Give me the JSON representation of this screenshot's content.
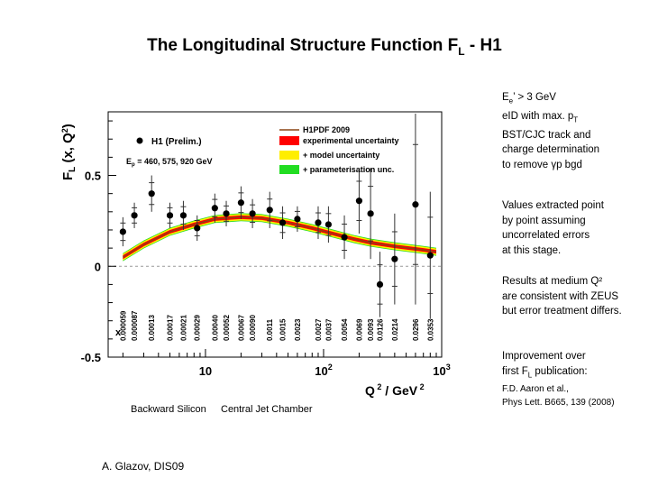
{
  "slide": {
    "title_main": "The Longitudinal Structure Function F",
    "title_sub": "L",
    "title_tail": " - H1"
  },
  "notes": {
    "cuts": {
      "line1_a": "E",
      "line1_sub": "e",
      "line1_b": "’ > 3 GeV",
      "line2_a": "eID with max. p",
      "line2_sub": "T",
      "line3": "BST/CJC track and",
      "line4": "charge determination",
      "line5": "to remove γp bgd"
    },
    "extraction": {
      "line1": "Values extracted point",
      "line2": "by point assuming",
      "line3": "uncorrelated errors",
      "line4": "at this stage."
    },
    "results": {
      "line1": "Results at medium Q²",
      "line2": "are consistent with ZEUS",
      "line3": "but error treatment differs."
    },
    "improvement": {
      "line1": "Improvement over",
      "line2_a": "first F",
      "line2_sub": "L",
      "line2_b": " publication:",
      "ref1": "F.D. Aaron et al.,",
      "ref2": "Phys Lett. B665, 139 (2008)"
    }
  },
  "footer": {
    "backward_label": "Backward Silicon",
    "central_label": "Central Jet Chamber",
    "author": "A. Glazov,  DIS09"
  },
  "chart_data": {
    "type": "scatter",
    "xscale": "log",
    "xlim": [
      1.5,
      1000
    ],
    "ylim": [
      -0.5,
      0.85
    ],
    "ylabel_main": "F",
    "ylabel_sub": "L",
    "ylabel_tail": " (x, Q",
    "ylabel_sup": "2",
    "ylabel_end": ")",
    "xlabel_main": "Q",
    "xlabel_sup1": " 2",
    "xlabel_mid": " / GeV",
    "xlabel_sup2": " 2",
    "x_ticks": [
      {
        "value": 10,
        "label": "10",
        "sup": ""
      },
      {
        "value": 100,
        "label": "10",
        "sup": "2"
      },
      {
        "value": 1000,
        "label": "10",
        "sup": "3"
      }
    ],
    "y_ticks": [
      {
        "value": 0.5,
        "label": "0.5"
      },
      {
        "value": 0,
        "label": "0"
      },
      {
        "value": -0.5,
        "label": "-0.5"
      }
    ],
    "x_row_label": "x",
    "x_values": [
      "0.000059",
      "0.000087",
      "0.00013",
      "0.00017",
      "0.00021",
      "0.00029",
      "0.00040",
      "0.00052",
      "0.00067",
      "0.00090",
      "0.0011",
      "0.0015",
      "0.0023",
      "0.0027",
      "0.0037",
      "0.0054",
      "0.0069",
      "0.0093",
      "0.0126",
      "0.0214",
      "0.0296",
      "0.0353"
    ],
    "legend": {
      "h1_label": "H1 (Prelim.)",
      "ep_label": "E",
      "ep_sub": "p",
      "ep_tail": " = 460, 575, 920 GeV",
      "pdf_label": "H1PDF 2009",
      "band1": "experimental uncertainty",
      "band2": "+ model uncertainty",
      "band3": "+ parameterisation unc."
    },
    "colors": {
      "band_exp": "#ff0000",
      "band_model": "#ffee00",
      "band_param": "#22dd22",
      "curve": "#8b4513",
      "points": "#000000"
    },
    "points": [
      {
        "q2": 2.0,
        "fl": 0.19,
        "err": 0.08
      },
      {
        "q2": 2.5,
        "fl": 0.28,
        "err": 0.07
      },
      {
        "q2": 3.5,
        "fl": 0.4,
        "err": 0.1
      },
      {
        "q2": 5.0,
        "fl": 0.28,
        "err": 0.07
      },
      {
        "q2": 6.5,
        "fl": 0.28,
        "err": 0.08
      },
      {
        "q2": 8.5,
        "fl": 0.21,
        "err": 0.07
      },
      {
        "q2": 12,
        "fl": 0.32,
        "err": 0.08
      },
      {
        "q2": 15,
        "fl": 0.29,
        "err": 0.07
      },
      {
        "q2": 20,
        "fl": 0.35,
        "err": 0.09
      },
      {
        "q2": 25,
        "fl": 0.29,
        "err": 0.08
      },
      {
        "q2": 35,
        "fl": 0.31,
        "err": 0.1
      },
      {
        "q2": 45,
        "fl": 0.24,
        "err": 0.09
      },
      {
        "q2": 60,
        "fl": 0.26,
        "err": 0.07
      },
      {
        "q2": 90,
        "fl": 0.24,
        "err": 0.09
      },
      {
        "q2": 110,
        "fl": 0.23,
        "err": 0.1
      },
      {
        "q2": 150,
        "fl": 0.16,
        "err": 0.12
      },
      {
        "q2": 200,
        "fl": 0.36,
        "err": 0.18
      },
      {
        "q2": 250,
        "fl": 0.29,
        "err": 0.25
      },
      {
        "q2": 300,
        "fl": -0.1,
        "err": 0.18
      },
      {
        "q2": 400,
        "fl": 0.04,
        "err": 0.25
      },
      {
        "q2": 600,
        "fl": 0.34,
        "err": 0.55
      },
      {
        "q2": 800,
        "fl": 0.06,
        "err": 0.35
      }
    ],
    "curve": [
      {
        "q2": 2.0,
        "fl": 0.05
      },
      {
        "q2": 3.0,
        "fl": 0.12
      },
      {
        "q2": 5.0,
        "fl": 0.19
      },
      {
        "q2": 8.0,
        "fl": 0.23
      },
      {
        "q2": 12,
        "fl": 0.26
      },
      {
        "q2": 20,
        "fl": 0.27
      },
      {
        "q2": 30,
        "fl": 0.265
      },
      {
        "q2": 50,
        "fl": 0.24
      },
      {
        "q2": 80,
        "fl": 0.21
      },
      {
        "q2": 120,
        "fl": 0.18
      },
      {
        "q2": 180,
        "fl": 0.15
      },
      {
        "q2": 250,
        "fl": 0.13
      },
      {
        "q2": 400,
        "fl": 0.11
      },
      {
        "q2": 700,
        "fl": 0.09
      },
      {
        "q2": 900,
        "fl": 0.08
      }
    ]
  }
}
